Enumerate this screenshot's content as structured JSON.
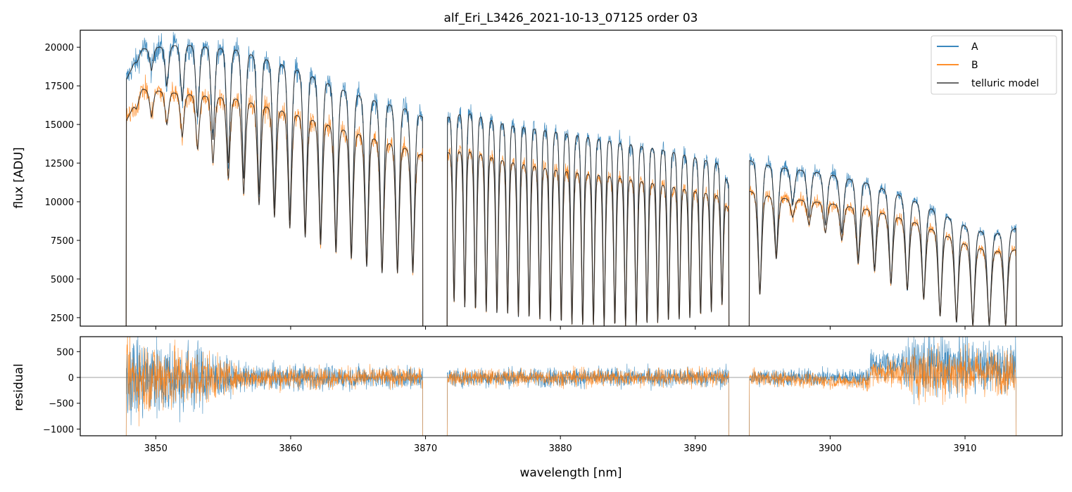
{
  "title": "alf_Eri_L3426_2021-10-13_07125  order 03",
  "colors": {
    "A": "#1f77b4",
    "B": "#ff7f0e",
    "model": "#2b2b2b",
    "zero_line": "#808080"
  },
  "chart_data": [
    {
      "type": "line",
      "panel": "flux",
      "ylabel": "flux [ADU]",
      "xlim": [
        3844.4,
        3917.2
      ],
      "ylim": [
        1950,
        21100
      ],
      "x_ticks": [
        3850,
        3860,
        3870,
        3880,
        3890,
        3900,
        3910
      ],
      "x_tick_labels_shown": false,
      "y_ticks": [
        2500,
        5000,
        7500,
        10000,
        12500,
        15000,
        17500,
        20000
      ],
      "y_tick_labels": [
        "2500",
        "5000",
        "7500",
        "10000",
        "12500",
        "15000",
        "17500",
        "20000"
      ],
      "legend": {
        "position": "top-right",
        "entries": [
          {
            "label": "A",
            "color": "#1f77b4"
          },
          {
            "label": "B",
            "color": "#ff7f0e"
          },
          {
            "label": "telluric model",
            "color": "#555555"
          }
        ]
      },
      "segments": [
        {
          "x_range": [
            3847.8,
            3869.8
          ],
          "absorption_line_count": 19,
          "series": [
            {
              "name": "A",
              "continuum_x": [
                3847.8,
                3849.0,
                3852.0,
                3856.0,
                3860.0,
                3864.0,
                3866.0,
                3869.0,
                3869.8
              ],
              "continuum_y": [
                17900,
                19900,
                20200,
                19900,
                18800,
                17300,
                16700,
                16000,
                15500
              ],
              "line_depth_to": [
                19000,
                18500,
                17500,
                16500,
                15500,
                14000,
                12500,
                11500,
                10500,
                9600,
                8800,
                8000,
                7500,
                7000,
                6600,
                6000,
                5500,
                5500,
                5500
              ]
            },
            {
              "name": "B",
              "continuum_x": [
                3847.8,
                3849.0,
                3852.0,
                3856.0,
                3860.0,
                3864.0,
                3866.0,
                3869.0,
                3869.8
              ],
              "continuum_y": [
                15200,
                17300,
                17000,
                16700,
                15800,
                14700,
                14200,
                13400,
                13000
              ],
              "line_depth_to": [
                16000,
                15500,
                15000,
                14200,
                13400,
                12500,
                11500,
                10500,
                9800,
                9000,
                8300,
                7700,
                7200,
                6700,
                6300,
                5800,
                5400,
                5400,
                5400
              ]
            }
          ]
        },
        {
          "x_range": [
            3871.6,
            3892.5
          ],
          "absorption_line_count": 26,
          "series": [
            {
              "name": "A",
              "continuum_x": [
                3871.6,
                3873.0,
                3876.0,
                3880.0,
                3884.0,
                3888.0,
                3892.0,
                3892.5
              ],
              "continuum_y": [
                15500,
                15900,
                15100,
                14600,
                14000,
                13400,
                12500,
                11000
              ],
              "line_depth_to": [
                3500,
                3200,
                3000,
                2900,
                2800,
                2700,
                2600,
                2500,
                2400,
                2300,
                2200,
                2100,
                2000,
                2000,
                2000,
                2000,
                2000,
                2000,
                2100,
                2200,
                2300,
                2400,
                2500,
                2700,
                2900,
                3300
              ]
            },
            {
              "name": "B",
              "continuum_x": [
                3871.6,
                3873.0,
                3876.0,
                3880.0,
                3884.0,
                3888.0,
                3892.0,
                3892.5
              ],
              "continuum_y": [
                13200,
                13400,
                12700,
                12100,
                11700,
                11100,
                10400,
                9400
              ],
              "line_depth_to": [
                3500,
                3200,
                3000,
                2900,
                2800,
                2700,
                2600,
                2500,
                2400,
                2300,
                2200,
                2100,
                2000,
                2000,
                2000,
                2000,
                2000,
                2000,
                2100,
                2200,
                2300,
                2400,
                2500,
                2700,
                2900,
                3300
              ]
            }
          ]
        },
        {
          "x_range": [
            3894.0,
            3913.8
          ],
          "absorption_line_count": 16,
          "series": [
            {
              "name": "A",
              "continuum_x": [
                3894.0,
                3896.0,
                3900.0,
                3903.0,
                3906.0,
                3908.0,
                3910.0,
                3912.0,
                3913.8
              ],
              "continuum_y": [
                12700,
                12300,
                11800,
                11200,
                10200,
                9400,
                8500,
                7900,
                8300
              ],
              "line_depth_to": [
                4000,
                6500,
                9800,
                9000,
                8500,
                8000,
                6200,
                5600,
                4700,
                4300,
                3700,
                2600,
                2200,
                2000,
                2000,
                2000
              ]
            },
            {
              "name": "B",
              "continuum_x": [
                3894.0,
                3896.0,
                3900.0,
                3903.0,
                3906.0,
                3908.0,
                3910.0,
                3912.0,
                3913.8
              ],
              "continuum_y": [
                10700,
                10300,
                9900,
                9500,
                8800,
                8100,
                7300,
                6800,
                6900
              ],
              "line_depth_to": [
                4000,
                6300,
                9000,
                8500,
                8000,
                7500,
                6000,
                5500,
                4700,
                4300,
                3700,
                2600,
                2200,
                2000,
                2000,
                2000
              ]
            }
          ]
        }
      ]
    },
    {
      "type": "line",
      "panel": "residual",
      "xlabel": "wavelength [nm]",
      "ylabel": "residual",
      "xlim": [
        3844.4,
        3917.2
      ],
      "ylim": [
        -1130,
        790
      ],
      "x_ticks": [
        3850,
        3860,
        3870,
        3880,
        3890,
        3900,
        3910
      ],
      "x_tick_labels": [
        "3850",
        "3860",
        "3870",
        "3880",
        "3890",
        "3900",
        "3910"
      ],
      "y_ticks": [
        -1000,
        -500,
        0,
        500
      ],
      "y_tick_labels": [
        "−1000",
        "−500",
        "0",
        "500"
      ],
      "reference_line_y": 0,
      "series": [
        {
          "name": "A",
          "segments": [
            [
              3847.8,
              3869.8
            ],
            [
              3871.6,
              3892.5
            ],
            [
              3894.0,
              3913.8
            ]
          ],
          "noise_x": [
            3847.8,
            3849.0,
            3853.0,
            3856.0,
            3869.8,
            3871.6,
            3892.5,
            3894.0,
            3902.0,
            3903.0,
            3905.0,
            3907.0,
            3911.0,
            3913.8
          ],
          "noise_amplitude": [
            900,
            900,
            750,
            300,
            220,
            200,
            220,
            200,
            180,
            300,
            350,
            700,
            550,
            500
          ],
          "offset_x": [
            3847.8,
            3892.5,
            3894.0,
            3902.8,
            3903.0,
            3913.8
          ],
          "offset_y": [
            0,
            0,
            0,
            0,
            250,
            200
          ]
        },
        {
          "name": "B",
          "segments": [
            [
              3847.8,
              3869.8
            ],
            [
              3871.6,
              3892.5
            ],
            [
              3894.0,
              3913.8
            ]
          ],
          "noise_x": [
            3847.8,
            3849.0,
            3853.0,
            3856.0,
            3869.8,
            3871.6,
            3892.5,
            3894.0,
            3902.0,
            3903.0,
            3905.0,
            3907.0,
            3911.0,
            3913.8
          ],
          "noise_amplitude": [
            800,
            800,
            650,
            260,
            200,
            180,
            200,
            170,
            150,
            260,
            300,
            650,
            500,
            450
          ],
          "offset_x": [
            3847.8,
            3892.5,
            3894.0,
            3902.8,
            3903.0,
            3913.8
          ],
          "offset_y": [
            0,
            0,
            0,
            -100,
            100,
            100
          ]
        }
      ]
    }
  ]
}
